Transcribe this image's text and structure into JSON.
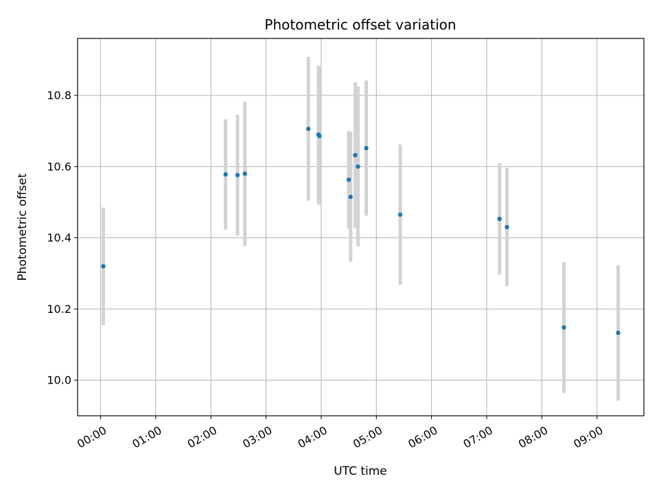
{
  "chart_data": {
    "type": "scatter",
    "title": "Photometric offset variation",
    "xlabel": "UTC time",
    "ylabel": "Photometric offset",
    "x_ticks": [
      "00:00",
      "01:00",
      "02:00",
      "03:00",
      "04:00",
      "05:00",
      "06:00",
      "07:00",
      "08:00",
      "09:00"
    ],
    "y_ticks": [
      "10.0",
      "10.2",
      "10.4",
      "10.6",
      "10.8"
    ],
    "xlim": [
      "23:35",
      "09:51"
    ],
    "ylim": [
      9.9,
      10.96
    ],
    "grid": true,
    "colors": {
      "points": "#1f77b4",
      "errorbars": "#d3d3d3",
      "grid": "#b0b0b0"
    },
    "series": [
      {
        "points": [
          {
            "x": "00:03",
            "y": 10.32,
            "yerr": 0.165
          },
          {
            "x": "02:16",
            "y": 10.578,
            "yerr": 0.155
          },
          {
            "x": "02:29",
            "y": 10.576,
            "yerr": 0.17
          },
          {
            "x": "02:37",
            "y": 10.58,
            "yerr": 0.203
          },
          {
            "x": "03:46",
            "y": 10.706,
            "yerr": 0.202
          },
          {
            "x": "03:57",
            "y": 10.69,
            "yerr": 0.193
          },
          {
            "x": "03:58",
            "y": 10.686,
            "yerr": 0.194
          },
          {
            "x": "04:30",
            "y": 10.563,
            "yerr": 0.137
          },
          {
            "x": "04:32",
            "y": 10.515,
            "yerr": 0.182
          },
          {
            "x": "04:37",
            "y": 10.632,
            "yerr": 0.205
          },
          {
            "x": "04:40",
            "y": 10.6,
            "yerr": 0.225
          },
          {
            "x": "04:49",
            "y": 10.652,
            "yerr": 0.19
          },
          {
            "x": "05:26",
            "y": 10.465,
            "yerr": 0.197
          },
          {
            "x": "07:14",
            "y": 10.453,
            "yerr": 0.157
          },
          {
            "x": "07:22",
            "y": 10.43,
            "yerr": 0.166
          },
          {
            "x": "08:24",
            "y": 10.148,
            "yerr": 0.184
          },
          {
            "x": "09:23",
            "y": 10.133,
            "yerr": 0.19
          }
        ]
      }
    ]
  }
}
